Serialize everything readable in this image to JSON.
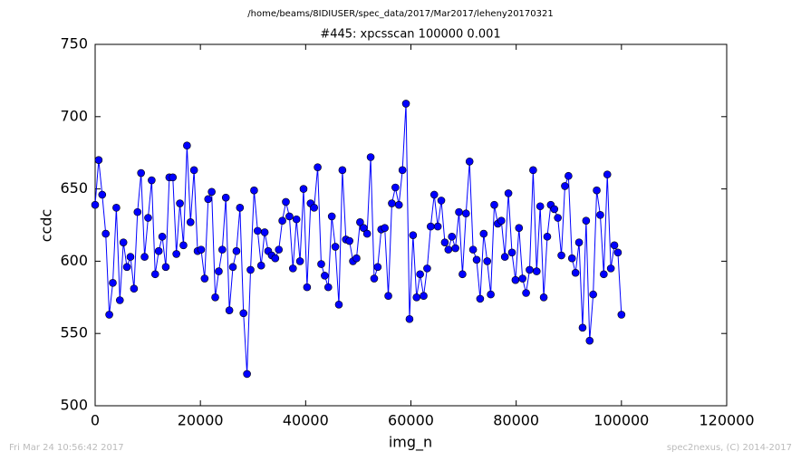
{
  "chart_data": {
    "type": "line",
    "header": "/home/beams/8IDIUSER/spec_data/2017/Mar2017/leheny20170321",
    "title": "#445: xpcsscan 100000 0.001",
    "x_label": "img_n",
    "y_label": "ccdc",
    "footer_left": "Fri Mar 24 10:56:42 2017",
    "footer_right": "spec2nexus, (C) 2014-2017",
    "xlim": [
      0,
      120000
    ],
    "xticks": [
      0,
      20000,
      40000,
      60000,
      80000,
      100000,
      120000
    ],
    "ylim": [
      500,
      750
    ],
    "yticks": [
      500,
      550,
      600,
      650,
      700,
      750
    ],
    "x": [
      0,
      671,
      1342,
      2013,
      2685,
      3356,
      4027,
      4698,
      5369,
      6040,
      6711,
      7383,
      8054,
      8725,
      9396,
      10067,
      10738,
      11409,
      12081,
      12752,
      13423,
      14094,
      14765,
      15436,
      16107,
      16779,
      17450,
      18121,
      18792,
      19463,
      20134,
      20805,
      21477,
      22148,
      22819,
      23490,
      24161,
      24832,
      25503,
      26174,
      26846,
      27517,
      28188,
      28859,
      29530,
      30201,
      30872,
      31544,
      32215,
      32886,
      33557,
      34228,
      34899,
      35570,
      36242,
      36913,
      37584,
      38255,
      38926,
      39597,
      40268,
      40940,
      41611,
      42282,
      42953,
      43624,
      44295,
      44966,
      45638,
      46309,
      46980,
      47651,
      48322,
      48993,
      49664,
      50336,
      51007,
      51678,
      52349,
      53020,
      53691,
      54362,
      55034,
      55705,
      56376,
      57047,
      57718,
      58389,
      59060,
      59732,
      60403,
      61074,
      61745,
      62416,
      63087,
      63758,
      64430,
      65101,
      65772,
      66443,
      67114,
      67785,
      68456,
      69128,
      69799,
      70470,
      71141,
      71812,
      72483,
      73154,
      73826,
      74497,
      75168,
      75839,
      76510,
      77181,
      77852,
      78523,
      79195,
      79866,
      80537,
      81208,
      81879,
      82550,
      83221,
      83893,
      84564,
      85235,
      85906,
      86577,
      87248,
      87919,
      88591,
      89262,
      89933,
      90604,
      91275,
      91946,
      92617,
      93289,
      93960,
      94631,
      95302,
      95973,
      96644,
      97315,
      97987,
      98658,
      99329,
      100000
    ],
    "series": [
      {
        "color": "#0000ff",
        "values": [
          639,
          670,
          646,
          619,
          563,
          585,
          637,
          573,
          613,
          596,
          603,
          581,
          634,
          661,
          603,
          630,
          656,
          591,
          607,
          617,
          596,
          658,
          658,
          605,
          640,
          611,
          680,
          627,
          663,
          607,
          608,
          588,
          643,
          648,
          575,
          593,
          608,
          644,
          566,
          596,
          607,
          637,
          564,
          522,
          594,
          649,
          621,
          597,
          620,
          607,
          604,
          602,
          608,
          628,
          641,
          631,
          595,
          629,
          600,
          650,
          582,
          640,
          637,
          665,
          598,
          590,
          582,
          631,
          610,
          570,
          663,
          615,
          614,
          600,
          602,
          627,
          623,
          619,
          672,
          588,
          596,
          622,
          623,
          576,
          640,
          651,
          639,
          663,
          709,
          560,
          618,
          575,
          591,
          576,
          595,
          624,
          646,
          624,
          642,
          613,
          608,
          617,
          609,
          634,
          591,
          633,
          669,
          608,
          601,
          574,
          619,
          600,
          577,
          639,
          626,
          628,
          603,
          647,
          606,
          587,
          623,
          588,
          578,
          594,
          663,
          593,
          638,
          575,
          617,
          639,
          636,
          630,
          604,
          652,
          659,
          602,
          592,
          613,
          554,
          628,
          545,
          577,
          649,
          632,
          591,
          660,
          595,
          611,
          606,
          563
        ]
      }
    ]
  }
}
